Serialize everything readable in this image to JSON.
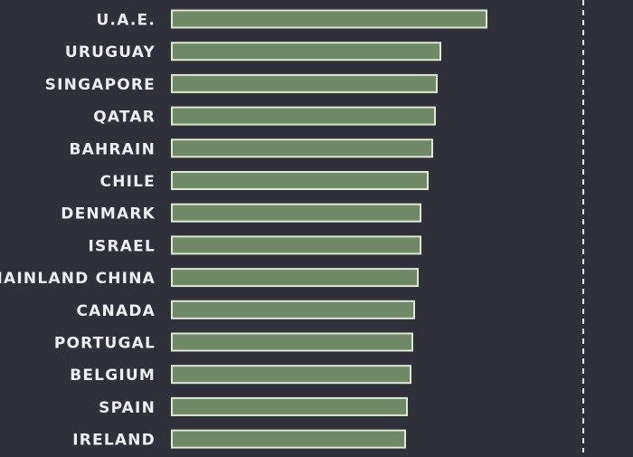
{
  "chart_data": {
    "type": "bar",
    "orientation": "horizontal",
    "categories": [
      "U.A.E.",
      "URUGUAY",
      "SINGAPORE",
      "QATAR",
      "BAHRAIN",
      "CHILE",
      "DENMARK",
      "ISRAEL",
      "MAINLAND CHINA",
      "CANADA",
      "PORTUGAL",
      "BELGIUM",
      "SPAIN",
      "IRELAND"
    ],
    "values": [
      348,
      297,
      293,
      291,
      288,
      283,
      275,
      275,
      272,
      268,
      266,
      264,
      260,
      258
    ],
    "reference_line": 455,
    "xlim": [
      0,
      510
    ],
    "grid": false,
    "legend": "none"
  },
  "colors": {
    "background": "#2f3039",
    "bar_fill": "#6f8866",
    "bar_outline": "#dfe8d4",
    "label_text": "#eceef2",
    "reference_line": "#e6e6ea"
  }
}
